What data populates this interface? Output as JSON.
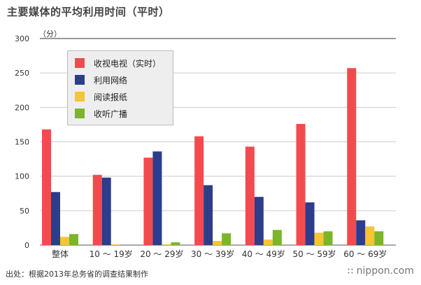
{
  "title": "主要媒体的平均利用时间（平时）",
  "unit": "（分）",
  "source": "出处：根据2013年总务省的调查结果制作",
  "logo": "nippon.com",
  "chart_data": {
    "type": "bar",
    "categories": [
      "整体",
      "10 ～ 19岁",
      "20 ～ 29岁",
      "30 ～ 39岁",
      "40 ～ 49岁",
      "50 ～ 59岁",
      "60 ～ 69岁"
    ],
    "series": [
      {
        "name": "收视电视（实时）",
        "color": "#f24b4f",
        "values": [
          168,
          102,
          127,
          158,
          143,
          176,
          257
        ]
      },
      {
        "name": "利用网络",
        "color": "#2d3c8b",
        "values": [
          77,
          98,
          136,
          87,
          70,
          62,
          36
        ]
      },
      {
        "name": "阅读报纸",
        "color": "#f5c532",
        "values": [
          12,
          1,
          1,
          6,
          8,
          18,
          27
        ]
      },
      {
        "name": "收听广播",
        "color": "#7ab52a",
        "values": [
          16,
          0,
          4,
          17,
          22,
          20,
          20
        ]
      }
    ],
    "yticks": [
      0,
      50,
      100,
      150,
      200,
      250,
      300
    ],
    "ylim": [
      0,
      300
    ],
    "grid": true,
    "legend_position": "top-left"
  }
}
